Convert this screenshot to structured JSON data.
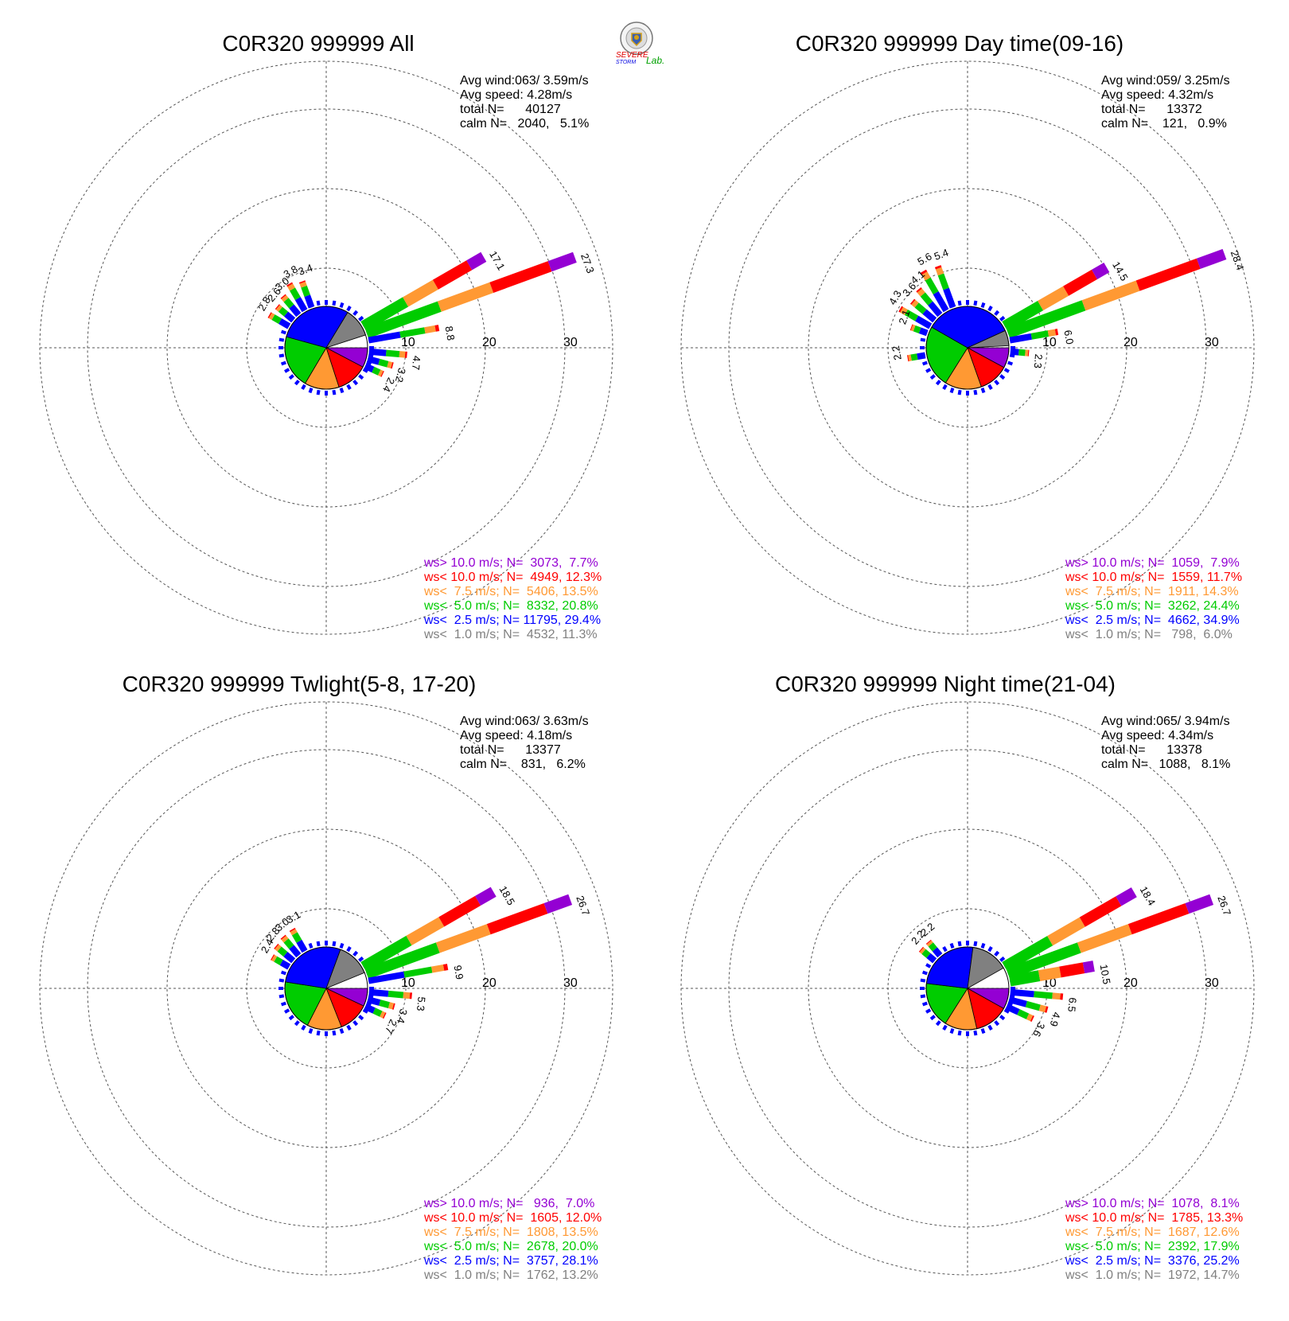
{
  "logo": {
    "text_severe": "SEVERE",
    "text_storm": "STORM",
    "text_lab": "Lab.",
    "colors": {
      "s_red": "#e00000",
      "s_blue": "#0000e0",
      "lab_green": "#00a000"
    }
  },
  "colors": {
    "gt10": "#9400d3",
    "lt10": "#ff0000",
    "lt7_5": "#ff9933",
    "lt5": "#00cc00",
    "lt2_5": "#0000ff",
    "lt1": "#808080",
    "grid": "#555555"
  },
  "chart_data": [
    {
      "type": "wind-rose",
      "title": "C0R320 999999 All",
      "avg_wind": "Avg wind:063/ 3.59m/s",
      "avg_speed": "Avg speed: 4.28m/s",
      "total": "total N=      40127",
      "calm": "calm N=   2040,   5.1%",
      "radial_ticks": [
        10,
        20,
        30
      ],
      "legend": [
        {
          "text": "ws> 10.0 m/s; N=  3073,  7.7%",
          "color_key": "gt10"
        },
        {
          "text": "ws< 10.0 m/s; N=  4949, 12.3%",
          "color_key": "lt10"
        },
        {
          "text": "ws<  7.5 m/s; N=  5406, 13.5%",
          "color_key": "lt7_5"
        },
        {
          "text": "ws<  5.0 m/s; N=  8332, 20.8%",
          "color_key": "lt5"
        },
        {
          "text": "ws<  2.5 m/s; N= 11795, 29.4%",
          "color_key": "lt2_5"
        },
        {
          "text": "ws<  1.0 m/s; N=  4532, 11.3%",
          "color_key": "lt1"
        }
      ],
      "pie_percent": [
        7.7,
        12.3,
        13.5,
        20.8,
        29.4,
        11.3
      ],
      "bars": [
        {
          "dir": 60,
          "total": 17.1,
          "label": "17.1"
        },
        {
          "dir": 70,
          "total": 27.3,
          "label": "27.3"
        },
        {
          "dir": 80,
          "total": 8.8,
          "label": "8.8"
        },
        {
          "dir": 95,
          "total": 4.7,
          "label": "4.7"
        },
        {
          "dir": 105,
          "total": 3.2,
          "label": "3.2"
        },
        {
          "dir": 115,
          "total": 2.4,
          "label": "2.4"
        },
        {
          "dir": 330,
          "total": 3.8,
          "label": "3.8"
        },
        {
          "dir": 340,
          "total": 3.4,
          "label": "3.4"
        },
        {
          "dir": 320,
          "total": 3.0,
          "label": "3.0"
        },
        {
          "dir": 310,
          "total": 2.6,
          "label": "2.6"
        },
        {
          "dir": 300,
          "total": 2.8,
          "label": "2.8"
        }
      ]
    },
    {
      "type": "wind-rose",
      "title": "C0R320 999999 Day time(09-16)",
      "avg_wind": "Avg wind:059/ 3.25m/s",
      "avg_speed": "Avg speed: 4.32m/s",
      "total": "total N=      13372",
      "calm": "calm N=    121,   0.9%",
      "radial_ticks": [
        10,
        20,
        30
      ],
      "legend": [
        {
          "text": "ws> 10.0 m/s; N=  1059,  7.9%",
          "color_key": "gt10"
        },
        {
          "text": "ws< 10.0 m/s; N=  1559, 11.7%",
          "color_key": "lt10"
        },
        {
          "text": "ws<  7.5 m/s; N=  1911, 14.3%",
          "color_key": "lt7_5"
        },
        {
          "text": "ws<  5.0 m/s; N=  3262, 24.4%",
          "color_key": "lt5"
        },
        {
          "text": "ws<  2.5 m/s; N=  4662, 34.9%",
          "color_key": "lt2_5"
        },
        {
          "text": "ws<  1.0 m/s; N=   798,  6.0%",
          "color_key": "lt1"
        }
      ],
      "pie_percent": [
        7.9,
        11.7,
        14.3,
        24.4,
        34.9,
        6.0
      ],
      "bars": [
        {
          "dir": 60,
          "total": 14.5,
          "label": "14.5"
        },
        {
          "dir": 70,
          "total": 28.4,
          "label": "28.4"
        },
        {
          "dir": 80,
          "total": 6.0,
          "label": "6.0"
        },
        {
          "dir": 95,
          "total": 2.3,
          "label": "2.3"
        },
        {
          "dir": 330,
          "total": 5.6,
          "label": "5.6"
        },
        {
          "dir": 340,
          "total": 5.4,
          "label": "5.4"
        },
        {
          "dir": 320,
          "total": 4.1,
          "label": "4.1"
        },
        {
          "dir": 310,
          "total": 3.6,
          "label": "3.6"
        },
        {
          "dir": 300,
          "total": 4.3,
          "label": "4.3"
        },
        {
          "dir": 290,
          "total": 2.1,
          "label": "2.1"
        },
        {
          "dir": 260,
          "total": 2.2,
          "label": "2.2"
        }
      ]
    },
    {
      "type": "wind-rose",
      "title": "C0R320 999999 Twlight(5-8, 17-20)",
      "avg_wind": "Avg wind:063/ 3.63m/s",
      "avg_speed": "Avg speed: 4.18m/s",
      "total": "total N=      13377",
      "calm": "calm N=    831,   6.2%",
      "radial_ticks": [
        10,
        20,
        30
      ],
      "legend": [
        {
          "text": "ws> 10.0 m/s; N=   936,  7.0%",
          "color_key": "gt10"
        },
        {
          "text": "ws< 10.0 m/s; N=  1605, 12.0%",
          "color_key": "lt10"
        },
        {
          "text": "ws<  7.5 m/s; N=  1808, 13.5%",
          "color_key": "lt7_5"
        },
        {
          "text": "ws<  5.0 m/s; N=  2678, 20.0%",
          "color_key": "lt5"
        },
        {
          "text": "ws<  2.5 m/s; N=  3757, 28.1%",
          "color_key": "lt2_5"
        },
        {
          "text": "ws<  1.0 m/s; N=  1762, 13.2%",
          "color_key": "lt1"
        }
      ],
      "pie_percent": [
        7.0,
        12.0,
        13.5,
        20.0,
        28.1,
        13.2
      ],
      "bars": [
        {
          "dir": 60,
          "total": 18.5,
          "label": "18.5"
        },
        {
          "dir": 70,
          "total": 26.7,
          "label": "26.7"
        },
        {
          "dir": 80,
          "total": 9.9,
          "label": "9.9"
        },
        {
          "dir": 95,
          "total": 5.3,
          "label": "5.3"
        },
        {
          "dir": 105,
          "total": 3.4,
          "label": "3.4"
        },
        {
          "dir": 115,
          "total": 2.7,
          "label": "2.7"
        },
        {
          "dir": 330,
          "total": 3.1,
          "label": "3.1"
        },
        {
          "dir": 320,
          "total": 3.0,
          "label": "3.0"
        },
        {
          "dir": 310,
          "total": 2.8,
          "label": "2.8"
        },
        {
          "dir": 300,
          "total": 2.4,
          "label": "2.4"
        }
      ]
    },
    {
      "type": "wind-rose",
      "title": "C0R320 999999 Night time(21-04)",
      "avg_wind": "Avg wind:065/ 3.94m/s",
      "avg_speed": "Avg speed: 4.34m/s",
      "total": "total N=      13378",
      "calm": "calm N=   1088,   8.1%",
      "radial_ticks": [
        10,
        20,
        30
      ],
      "legend": [
        {
          "text": "ws> 10.0 m/s; N=  1078,  8.1%",
          "color_key": "gt10"
        },
        {
          "text": "ws< 10.0 m/s; N=  1785, 13.3%",
          "color_key": "lt10"
        },
        {
          "text": "ws<  7.5 m/s; N=  1687, 12.6%",
          "color_key": "lt7_5"
        },
        {
          "text": "ws<  5.0 m/s; N=  2392, 17.9%",
          "color_key": "lt5"
        },
        {
          "text": "ws<  2.5 m/s; N=  3376, 25.2%",
          "color_key": "lt2_5"
        },
        {
          "text": "ws<  1.0 m/s; N=  1972, 14.7%",
          "color_key": "lt1"
        }
      ],
      "pie_percent": [
        8.1,
        13.3,
        12.6,
        17.9,
        25.2,
        14.7
      ],
      "bars": [
        {
          "dir": 60,
          "total": 18.4,
          "label": "18.4"
        },
        {
          "dir": 70,
          "total": 26.7,
          "label": "26.7"
        },
        {
          "dir": 80,
          "total": 10.5,
          "label": "10.5"
        },
        {
          "dir": 95,
          "total": 6.5,
          "label": "6.5"
        },
        {
          "dir": 105,
          "total": 4.9,
          "label": "4.9"
        },
        {
          "dir": 115,
          "total": 3.6,
          "label": "3.6"
        },
        {
          "dir": 320,
          "total": 2.2,
          "label": "2.2"
        },
        {
          "dir": 310,
          "total": 2.2,
          "label": "2.2"
        }
      ]
    }
  ]
}
